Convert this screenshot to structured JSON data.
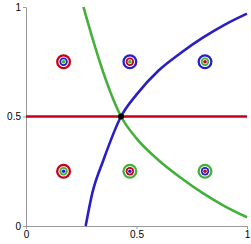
{
  "chart_data": {
    "type": "line",
    "xlim": [
      0,
      1
    ],
    "ylim": [
      0,
      1
    ],
    "xticks": [
      0,
      0.5,
      1
    ],
    "yticks": [
      0,
      0.5,
      1
    ],
    "series": [
      {
        "type": "line",
        "color": "#c4001c",
        "x": [
          0,
          1
        ],
        "values": [
          0.5,
          0.5
        ]
      },
      {
        "type": "line",
        "color": "#2a1ec8",
        "x": [
          0.27,
          0.3,
          0.35,
          0.43,
          0.5,
          0.6,
          0.7,
          0.8,
          0.9,
          1.0
        ],
        "values": [
          0,
          0.15,
          0.3,
          0.5,
          0.6,
          0.71,
          0.79,
          0.86,
          0.92,
          0.97
        ]
      },
      {
        "type": "line",
        "color": "#44b03c",
        "x": [
          0.26,
          0.3,
          0.35,
          0.43,
          0.5,
          0.6,
          0.7,
          0.8,
          0.9,
          1.0
        ],
        "values": [
          1,
          0.86,
          0.7,
          0.5,
          0.4,
          0.3,
          0.22,
          0.15,
          0.09,
          0.04
        ]
      },
      {
        "type": "scatter",
        "marker": "dot",
        "color": "#000000",
        "x": [
          0.43
        ],
        "values": [
          0.5
        ]
      },
      {
        "type": "scatter",
        "marker": "ring",
        "x": [
          0.17,
          0.47,
          0.81,
          0.17,
          0.47,
          0.81
        ],
        "values": [
          0.75,
          0.75,
          0.75,
          0.25,
          0.25,
          0.25
        ],
        "colors": [
          "#c4001c",
          "#2a1ec8",
          "#2a1ec8",
          "#c4001c",
          "#44b03c",
          "#44b03c"
        ]
      },
      {
        "type": "scatter",
        "marker": "ring",
        "x": [
          0.17,
          0.47,
          0.81,
          0.17,
          0.47,
          0.81
        ],
        "values": [
          0.75,
          0.75,
          0.75,
          0.25,
          0.25,
          0.25
        ],
        "colors": [
          "#2a1ec8",
          "#c4001c",
          "#44b03c",
          "#44b03c",
          "#c4001c",
          "#2a1ec8"
        ]
      },
      {
        "type": "scatter",
        "marker": "dot",
        "x": [
          0.17,
          0.47,
          0.81,
          0.17,
          0.47,
          0.81
        ],
        "values": [
          0.75,
          0.75,
          0.75,
          0.25,
          0.25,
          0.25
        ],
        "colors": [
          "#44b03c",
          "#44b03c",
          "#c4001c",
          "#2a1ec8",
          "#2a1ec8",
          "#c4001c"
        ]
      }
    ]
  }
}
